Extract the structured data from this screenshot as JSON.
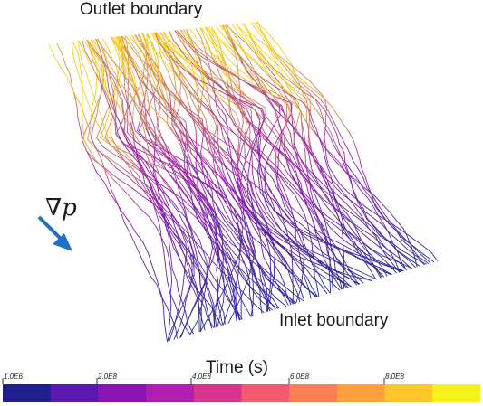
{
  "labels": {
    "outlet": "Outlet boundary",
    "inlet": "Inlet boundary",
    "pressure_gradient_symbol": "∇",
    "pressure_gradient_var": "p",
    "colorbar_title": "Time (s)"
  },
  "colorbar": {
    "ticks": [
      "1.0E6",
      "2.0E8",
      "4.0E8",
      "6.0E8",
      "8.0E8"
    ],
    "colors": [
      "#1f1f8f",
      "#5a18b0",
      "#8a14b4",
      "#b21fb0",
      "#d8368e",
      "#f25a70",
      "#ff7c55",
      "#ffa03c",
      "#ffc72a",
      "#f4f21a"
    ]
  },
  "colors": {
    "arrow": "#2070c8",
    "streamline_low": "#2a2a9a",
    "streamline_mid": "#a020b0",
    "streamline_high": "#f8d020"
  }
}
